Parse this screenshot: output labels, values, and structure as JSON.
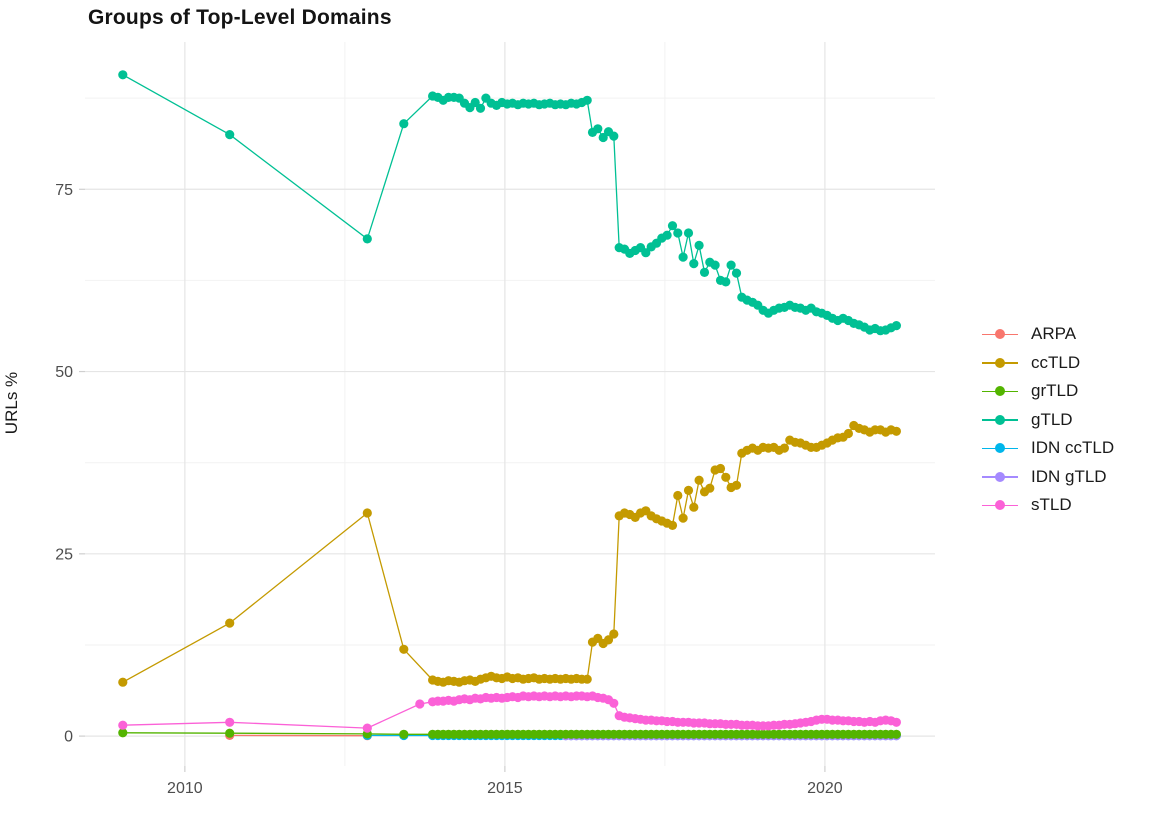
{
  "chart_data": {
    "type": "line",
    "title": "Groups of Top-Level Domains",
    "xlabel": "",
    "ylabel": "URLs %",
    "xlim": [
      2008.44,
      2021.72
    ],
    "ylim": [
      -4.1,
      95.2
    ],
    "grid": true,
    "legend_position": "right",
    "x_ticks": [
      2010,
      2015,
      2020
    ],
    "x_minor_ticks": [
      2012.5,
      2017.5
    ],
    "y_ticks": [
      0,
      25,
      50,
      75
    ],
    "y_minor_ticks": [
      12.5,
      37.5,
      62.5,
      87.5
    ],
    "series": [
      {
        "name": "ARPA",
        "color": "#F8766D",
        "z": 1,
        "pre": [
          [
            2010.7,
            0.1
          ],
          [
            2012.85,
            0.05
          ]
        ]
      },
      {
        "name": "ccTLD",
        "color": "#C49A00",
        "z": 5,
        "pre": [
          [
            2009.03,
            7.4
          ],
          [
            2010.7,
            15.5
          ],
          [
            2012.85,
            30.6
          ],
          [
            2013.42,
            11.9
          ]
        ],
        "dense": {
          "start": 2013.87,
          "step": 0.0833,
          "values": [
            7.7,
            7.5,
            7.4,
            7.6,
            7.5,
            7.4,
            7.6,
            7.7,
            7.5,
            7.8,
            8.0,
            8.2,
            8.0,
            7.9,
            8.1,
            7.9,
            8.0,
            7.8,
            7.9,
            8.0,
            7.8,
            7.9,
            7.8,
            7.9,
            7.8,
            7.9,
            7.8,
            7.9,
            7.8,
            7.8,
            12.9,
            13.4,
            12.7,
            13.2,
            14.0,
            30.2,
            30.6,
            30.4,
            30.0,
            30.6,
            30.9,
            30.2,
            29.8,
            29.5,
            29.2,
            28.9,
            33.0,
            29.9,
            33.7,
            31.4,
            35.1,
            33.5,
            34.0,
            36.5,
            36.7,
            35.5,
            34.1,
            34.4,
            38.8,
            39.2,
            39.5,
            39.2,
            39.6,
            39.5,
            39.6,
            39.2,
            39.5,
            40.6,
            40.3,
            40.2,
            39.9,
            39.6,
            39.6,
            39.9,
            40.2,
            40.6,
            40.9,
            41.0,
            41.5,
            42.6,
            42.2,
            42.0,
            41.7,
            42.0,
            42.0,
            41.7,
            42.0,
            41.8
          ]
        }
      },
      {
        "name": "grTLD",
        "color": "#53B400",
        "z": 4,
        "pre": [
          [
            2009.03,
            0.45
          ],
          [
            2010.7,
            0.4
          ],
          [
            2012.85,
            0.3
          ],
          [
            2013.42,
            0.25
          ]
        ],
        "dense": {
          "start": 2013.87,
          "end": 2021.12,
          "step": 0.0833,
          "const": 0.25
        }
      },
      {
        "name": "gTLD",
        "color": "#00C094",
        "z": 6,
        "pre": [
          [
            2009.03,
            90.7
          ],
          [
            2010.7,
            82.5
          ],
          [
            2012.85,
            68.2
          ],
          [
            2013.42,
            84.0
          ]
        ],
        "dense": {
          "start": 2013.87,
          "step": 0.0833,
          "values": [
            87.8,
            87.6,
            87.2,
            87.6,
            87.6,
            87.5,
            86.8,
            86.2,
            86.9,
            86.1,
            87.5,
            86.8,
            86.5,
            86.9,
            86.7,
            86.8,
            86.6,
            86.8,
            86.7,
            86.8,
            86.6,
            86.7,
            86.8,
            86.6,
            86.7,
            86.6,
            86.8,
            86.7,
            86.9,
            87.2,
            82.8,
            83.3,
            82.1,
            82.9,
            82.3,
            67.0,
            66.8,
            66.2,
            66.6,
            67.0,
            66.3,
            67.1,
            67.6,
            68.3,
            68.7,
            70.0,
            69.0,
            65.7,
            69.0,
            64.8,
            67.3,
            63.6,
            65.0,
            64.6,
            62.5,
            62.3,
            64.6,
            63.5,
            60.2,
            59.8,
            59.5,
            59.1,
            58.4,
            58.0,
            58.4,
            58.7,
            58.8,
            59.1,
            58.8,
            58.7,
            58.4,
            58.7,
            58.2,
            58.0,
            57.7,
            57.3,
            57.0,
            57.3,
            57.0,
            56.6,
            56.4,
            56.1,
            55.7,
            55.9,
            55.6,
            55.7,
            56.0,
            56.3
          ]
        }
      },
      {
        "name": "IDN ccTLD",
        "color": "#00B6EB",
        "z": 2,
        "pre": [
          [
            2012.85,
            0.1
          ],
          [
            2013.42,
            0.08
          ]
        ],
        "dense": {
          "start": 2013.87,
          "end": 2021.12,
          "step": 0.0833,
          "const": 0.08
        }
      },
      {
        "name": "IDN gTLD",
        "color": "#A58AFF",
        "z": 3,
        "pre": [],
        "dense": {
          "start": 2015.95,
          "end": 2021.12,
          "step": 0.0833,
          "const": 0.04
        }
      },
      {
        "name": "sTLD",
        "color": "#FB61D7",
        "z": 7,
        "pre": [
          [
            2009.03,
            1.5
          ],
          [
            2010.7,
            1.9
          ],
          [
            2012.85,
            1.1
          ],
          [
            2013.67,
            4.4
          ]
        ],
        "dense": {
          "start": 2013.87,
          "step": 0.0833,
          "values": [
            4.7,
            4.8,
            4.8,
            4.9,
            4.8,
            5.0,
            5.1,
            5.0,
            5.2,
            5.1,
            5.3,
            5.2,
            5.3,
            5.2,
            5.3,
            5.4,
            5.3,
            5.5,
            5.4,
            5.5,
            5.4,
            5.5,
            5.4,
            5.5,
            5.4,
            5.5,
            5.4,
            5.5,
            5.5,
            5.4,
            5.5,
            5.3,
            5.2,
            5.0,
            4.5,
            2.8,
            2.6,
            2.5,
            2.4,
            2.3,
            2.2,
            2.2,
            2.1,
            2.1,
            2.0,
            2.0,
            1.9,
            1.9,
            1.9,
            1.8,
            1.8,
            1.8,
            1.7,
            1.7,
            1.7,
            1.6,
            1.6,
            1.6,
            1.5,
            1.5,
            1.5,
            1.4,
            1.4,
            1.4,
            1.5,
            1.5,
            1.6,
            1.6,
            1.7,
            1.8,
            1.9,
            2.0,
            2.2,
            2.3,
            2.3,
            2.2,
            2.2,
            2.1,
            2.1,
            2.0,
            2.0,
            1.9,
            2.0,
            1.9,
            2.1,
            2.2,
            2.1,
            1.9
          ]
        }
      }
    ]
  }
}
